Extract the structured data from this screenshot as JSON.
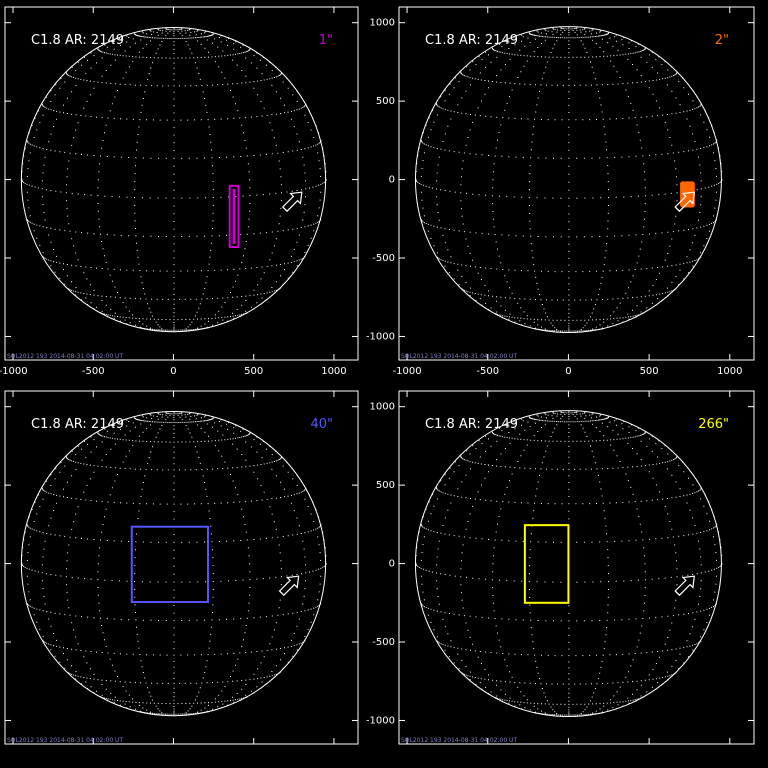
{
  "figure": {
    "background": "#000000",
    "foreground": "#ffffff"
  },
  "chart_data": [
    {
      "type": "scatter",
      "event_label": "C1.8 AR: 2149",
      "size_label": "1\"",
      "color": "#cc00cc",
      "xlim": [
        -1050,
        1150
      ],
      "ylim": [
        -1150,
        1100
      ],
      "xticks": [
        -1000,
        -500,
        0,
        500,
        1000
      ],
      "yticks": [
        -1000,
        -500,
        0,
        500,
        1000
      ],
      "show_xtick_labels": true,
      "show_ytick_labels": false,
      "solar_radius": 948,
      "arrow_tip": [
        800,
        -80
      ],
      "region": {
        "x0": 350,
        "x1": 405,
        "y0": -430,
        "y1": -40,
        "filled": false,
        "double_outline": true
      },
      "footer": "SOL2012 193 2014-08-31 04:02:00 UT"
    },
    {
      "type": "scatter",
      "event_label": "C1.8 AR: 2149",
      "size_label": "2\"",
      "color": "#ff6600",
      "xlim": [
        -1050,
        1150
      ],
      "ylim": [
        -1150,
        1100
      ],
      "xticks": [
        -1000,
        -500,
        0,
        500,
        1000
      ],
      "yticks": [
        -1000,
        -500,
        0,
        500,
        1000
      ],
      "show_xtick_labels": true,
      "show_ytick_labels": true,
      "solar_radius": 948,
      "arrow_tip": [
        780,
        -80
      ],
      "region": {
        "x0": 695,
        "x1": 780,
        "y0": -175,
        "y1": -15,
        "filled": true,
        "double_outline": false
      },
      "footer": "SOL2012 193 2014-08-31 04:02:00 UT"
    },
    {
      "type": "scatter",
      "event_label": "C1.8 AR: 2149",
      "size_label": "40\"",
      "color": "#5555ff",
      "xlim": [
        -1050,
        1150
      ],
      "ylim": [
        -1150,
        1100
      ],
      "xticks": [
        -1000,
        -500,
        0,
        500,
        1000
      ],
      "yticks": [
        -1000,
        -500,
        0,
        500,
        1000
      ],
      "show_xtick_labels": false,
      "show_ytick_labels": false,
      "solar_radius": 948,
      "arrow_tip": [
        780,
        -80
      ],
      "region": {
        "x0": -260,
        "x1": 215,
        "y0": -245,
        "y1": 235,
        "filled": false,
        "double_outline": false
      },
      "footer": "SOL2012 193 2014-08-31 04:02:00 UT"
    },
    {
      "type": "scatter",
      "event_label": "C1.8 AR: 2149",
      "size_label": "266\"",
      "color": "#ffff00",
      "xlim": [
        -1050,
        1150
      ],
      "ylim": [
        -1150,
        1100
      ],
      "xticks": [
        -1000,
        -500,
        0,
        500,
        1000
      ],
      "yticks": [
        -1000,
        -500,
        0,
        500,
        1000
      ],
      "show_xtick_labels": false,
      "show_ytick_labels": true,
      "solar_radius": 948,
      "arrow_tip": [
        780,
        -80
      ],
      "region": {
        "x0": -270,
        "x1": 0,
        "y0": -250,
        "y1": 245,
        "filled": false,
        "double_outline": false
      },
      "footer": "SOL2012 193 2014-08-31 04:02:00 UT"
    }
  ]
}
